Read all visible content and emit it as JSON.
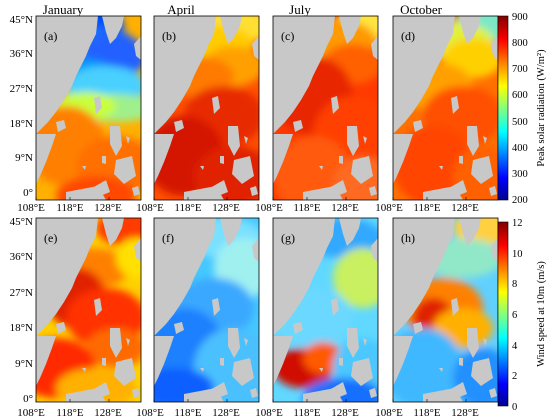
{
  "month_titles": [
    "January",
    "April",
    "July",
    "October"
  ],
  "panel_letters": [
    [
      "(a)",
      "(b)",
      "(c)",
      "(d)"
    ],
    [
      "(e)",
      "(f)",
      "(g)",
      "(h)"
    ]
  ],
  "lat_ticks": [
    "45°N",
    "36°N",
    "27°N",
    "18°N",
    "9°N",
    "0°"
  ],
  "lon_ticks": [
    "108°E",
    "118°E",
    "128°E"
  ],
  "colorbars": {
    "top": {
      "label": "Peak solar radiation (W/m²)",
      "ticks": [
        "900",
        "800",
        "700",
        "600",
        "500",
        "400",
        "300",
        "200"
      ],
      "range": [
        200,
        900
      ]
    },
    "bottom": {
      "label": "Wind speed at 10m (m/s)",
      "ticks": [
        "12",
        "10",
        "8",
        "6",
        "4",
        "2",
        "0"
      ],
      "range": [
        0,
        12
      ]
    }
  },
  "colors": {
    "land": "#c8c8c8",
    "colormap": "jet"
  },
  "map_extent": {
    "lon": [
      103,
      133
    ],
    "lat": [
      0,
      45
    ]
  }
}
